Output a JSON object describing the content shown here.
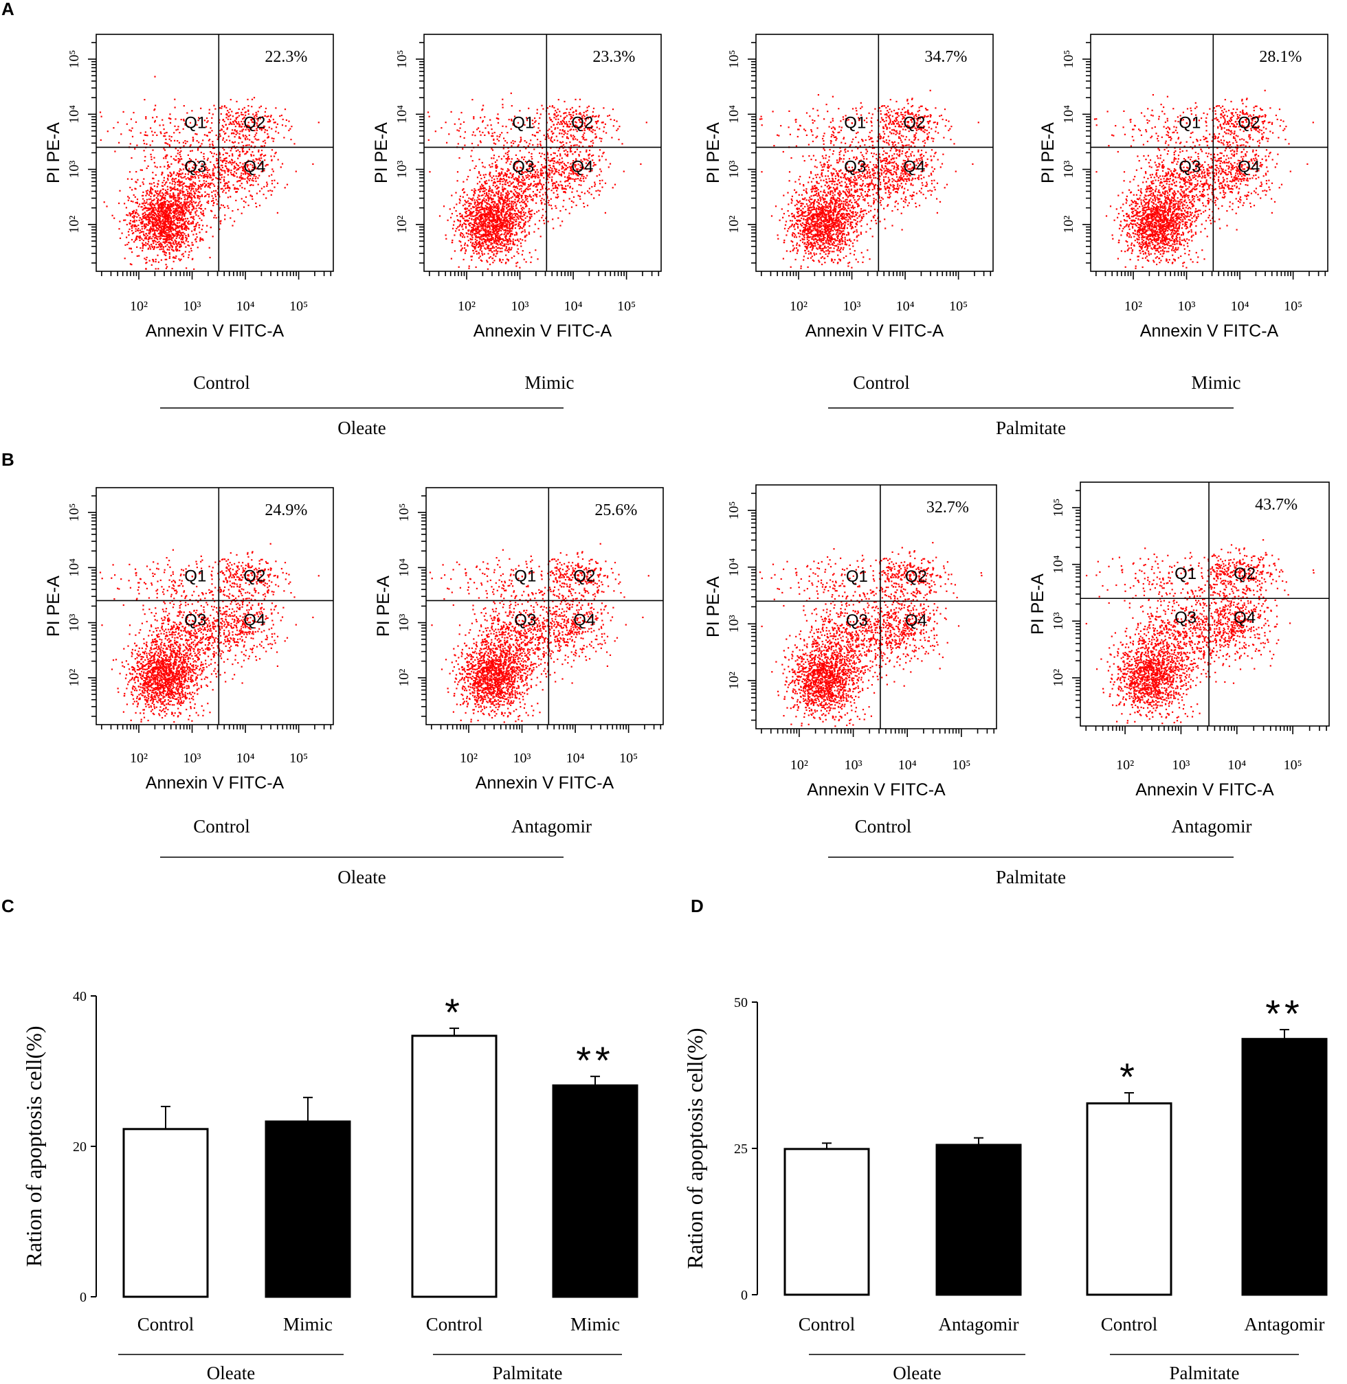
{
  "panel_labels": [
    "A",
    "B",
    "C",
    "D"
  ],
  "chart_data": [
    {
      "panel": "A",
      "type": "scatter",
      "plot_kind": "flow cytometry dot plot",
      "xlabel": "Annexin V FITC-A",
      "ylabel": "PI PE-A",
      "xlim": [
        10,
        500000
      ],
      "ylim": [
        10,
        300000
      ],
      "x_ticks": [
        "10²",
        "10³",
        "10⁴",
        "10⁵"
      ],
      "y_ticks": [
        "10²",
        "10³",
        "10⁴",
        "10⁵"
      ],
      "quadrants": [
        "Q1",
        "Q2",
        "Q3",
        "Q4"
      ],
      "plots": [
        {
          "condition": "Control",
          "group": "Oleate",
          "apoptosis_label": "22.3%"
        },
        {
          "condition": "Mimic",
          "group": "Oleate",
          "apoptosis_label": "23.3%"
        },
        {
          "condition": "Control",
          "group": "Palmitate",
          "apoptosis_label": "34.7%"
        },
        {
          "condition": "Mimic",
          "group": "Palmitate",
          "apoptosis_label": "28.1%"
        }
      ],
      "groups": [
        "Oleate",
        "Palmitate"
      ]
    },
    {
      "panel": "B",
      "type": "scatter",
      "plot_kind": "flow cytometry dot plot",
      "xlabel": "Annexin V FITC-A",
      "ylabel": "PI PE-A",
      "xlim": [
        10,
        500000
      ],
      "ylim": [
        10,
        300000
      ],
      "x_ticks": [
        "10²",
        "10³",
        "10⁴",
        "10⁵"
      ],
      "y_ticks": [
        "10²",
        "10³",
        "10⁴",
        "10⁵"
      ],
      "quadrants": [
        "Q1",
        "Q2",
        "Q3",
        "Q4"
      ],
      "plots": [
        {
          "condition": "Control",
          "group": "Oleate",
          "apoptosis_label": "24.9%"
        },
        {
          "condition": "Antagomir",
          "group": "Oleate",
          "apoptosis_label": "25.6%"
        },
        {
          "condition": "Control",
          "group": "Palmitate",
          "apoptosis_label": "32.7%"
        },
        {
          "condition": "Antagomir",
          "group": "Palmitate",
          "apoptosis_label": "43.7%"
        }
      ],
      "groups": [
        "Oleate",
        "Palmitate"
      ]
    },
    {
      "panel": "C",
      "type": "bar",
      "ylabel": "Ration of apoptosis cell(%)",
      "ylim": [
        0,
        40
      ],
      "y_ticks": [
        "0",
        "20",
        "40"
      ],
      "categories": [
        "Control",
        "Mimic",
        "Control",
        "Mimic"
      ],
      "groups": [
        "Oleate",
        "Palmitate"
      ],
      "values": [
        22.3,
        23.3,
        34.7,
        28.1
      ],
      "errors": [
        3.0,
        3.2,
        1.0,
        1.2
      ],
      "fills": [
        "#ffffff",
        "#000000",
        "#ffffff",
        "#000000"
      ],
      "significance": [
        "",
        "",
        "*",
        "**"
      ]
    },
    {
      "panel": "D",
      "type": "bar",
      "ylabel": "Ration of apoptosis cell(%)",
      "ylim": [
        0,
        50
      ],
      "y_ticks": [
        "0",
        "25",
        "50"
      ],
      "categories": [
        "Control",
        "Antagomir",
        "Control",
        "Antagomir"
      ],
      "groups": [
        "Oleate",
        "Palmitate"
      ],
      "values": [
        24.9,
        25.6,
        32.7,
        43.7
      ],
      "errors": [
        1.0,
        1.2,
        1.8,
        1.6
      ],
      "fills": [
        "#ffffff",
        "#000000",
        "#ffffff",
        "#000000"
      ],
      "significance": [
        "",
        "",
        "*",
        "**"
      ]
    }
  ],
  "colors": {
    "dots": "#ff0000",
    "axis": "#000000"
  }
}
